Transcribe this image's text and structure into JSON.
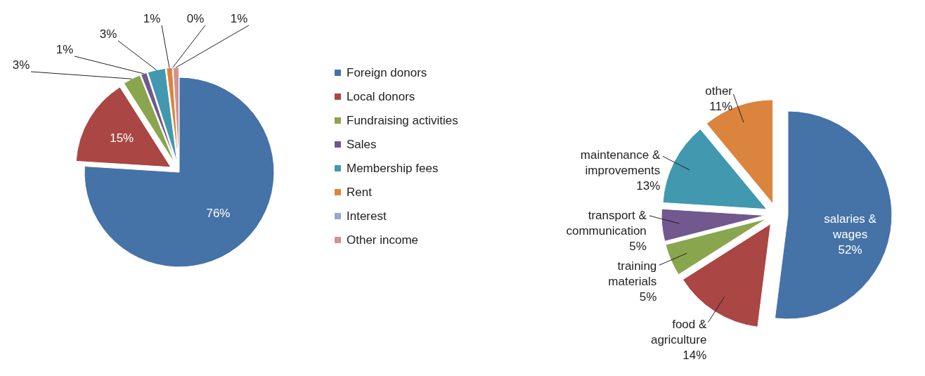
{
  "chart_data": [
    {
      "type": "pie",
      "categories": [
        "Foreign donors",
        "Local donors",
        "Fundraising activities",
        "Sales",
        "Membership fees",
        "Rent",
        "Interest",
        "Other income"
      ],
      "values": [
        76,
        15,
        3,
        1,
        3,
        1,
        0,
        1
      ],
      "colors": [
        "#4572a7",
        "#aa4643",
        "#89a54e",
        "#71588f",
        "#4198af",
        "#db843d",
        "#93a9cf",
        "#d19392"
      ],
      "value_labels": [
        "76%",
        "15%",
        "3%",
        "1%",
        "3%",
        "1%",
        "0%",
        "1%"
      ],
      "legend": "right"
    },
    {
      "type": "pie",
      "categories": [
        "salaries & wages",
        "food & agriculture",
        "training materials",
        "transport & communication",
        "maintenance & improvements",
        "other"
      ],
      "values": [
        52,
        14,
        5,
        5,
        13,
        11
      ],
      "colors": [
        "#4572a7",
        "#aa4643",
        "#89a54e",
        "#71588f",
        "#4198af",
        "#db843d"
      ],
      "value_labels": [
        "52%",
        "14%",
        "5%",
        "5%",
        "13%",
        "11%"
      ],
      "legend": false
    }
  ]
}
